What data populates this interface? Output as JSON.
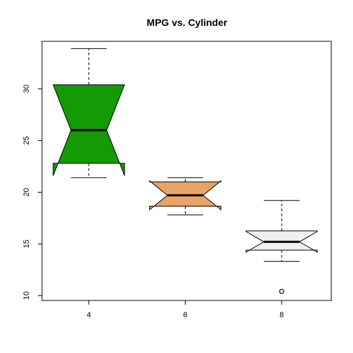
{
  "chart_data": {
    "type": "boxplot",
    "title": "MPG vs. Cylinder",
    "xlabel": "",
    "ylabel": "",
    "notched": true,
    "ylim": [
      10,
      34.6
    ],
    "yticks": [
      10,
      15,
      20,
      25,
      30
    ],
    "categories": [
      "4",
      "6",
      "8"
    ],
    "grid": false,
    "boxes": [
      {
        "category": "4",
        "color": "#149a02",
        "whisker_low": 21.4,
        "q1": 22.8,
        "median": 26.0,
        "q3": 30.4,
        "whisker_high": 33.9,
        "notch_low": 21.6,
        "notch_high": 30.4,
        "outliers": []
      },
      {
        "category": "6",
        "color": "#e8a366",
        "whisker_low": 17.8,
        "q1": 18.65,
        "median": 19.7,
        "q3": 21.0,
        "whisker_high": 21.4,
        "notch_low": 18.3,
        "notch_high": 21.1,
        "outliers": []
      },
      {
        "category": "8",
        "color": "#f0f0f0",
        "whisker_low": 13.3,
        "q1": 14.4,
        "median": 15.2,
        "q3": 16.25,
        "whisker_high": 19.2,
        "notch_low": 14.2,
        "notch_high": 16.2,
        "outliers": [
          10.4
        ]
      }
    ]
  }
}
